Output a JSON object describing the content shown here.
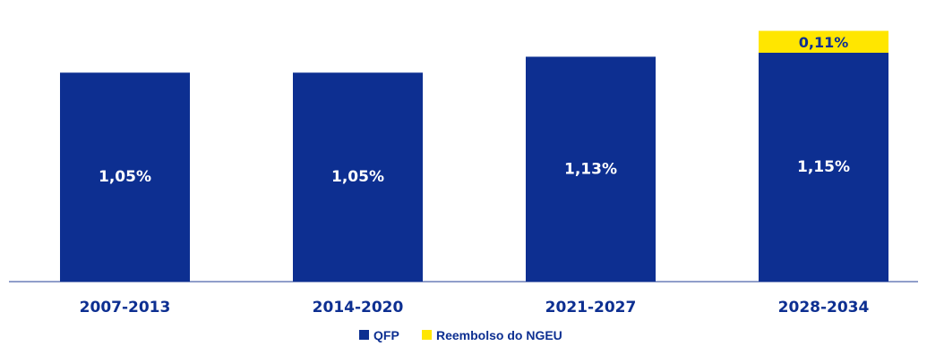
{
  "chart_data": {
    "type": "bar",
    "stacked": true,
    "categories": [
      "2007-2013",
      "2014-2020",
      "2021-2027",
      "2028-2034"
    ],
    "series": [
      {
        "name": "QFP",
        "color": "#0d2f91",
        "values": [
          1.05,
          1.05,
          1.13,
          1.15
        ],
        "labels": [
          "1,05%",
          "1,05%",
          "1,13%",
          "1,15%"
        ]
      },
      {
        "name": "Reembolso do NGEU",
        "color": "#ffe600",
        "values": [
          0,
          0,
          0,
          0.11
        ],
        "labels": [
          "",
          "",
          "",
          "0,11%"
        ]
      }
    ],
    "legend_position": "bottom-center",
    "grid": false,
    "axis_color": "#6b7fb8",
    "ylim": [
      0,
      1.26
    ]
  }
}
